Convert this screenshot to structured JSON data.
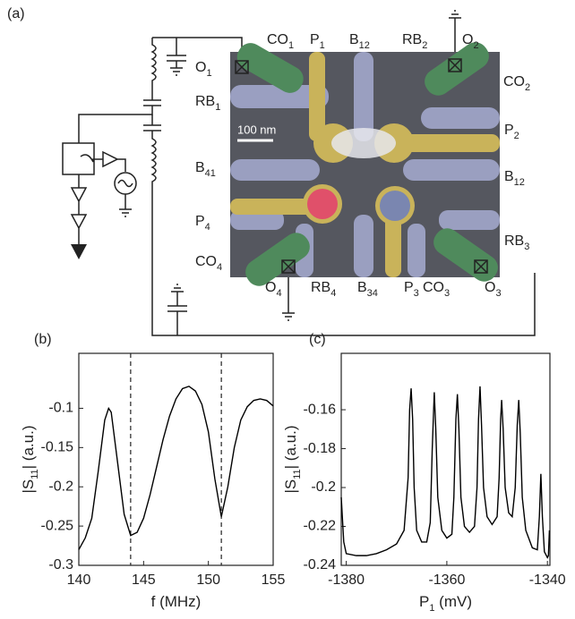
{
  "panel_a": {
    "panel_label": "(a)",
    "scale_bar": "100 nm",
    "gate_labels": [
      {
        "main": "CO",
        "sub": "1"
      },
      {
        "main": "P",
        "sub": "1"
      },
      {
        "main": "B",
        "sub": "12"
      },
      {
        "main": "RB",
        "sub": "2"
      },
      {
        "main": "O",
        "sub": "2"
      },
      {
        "main": "CO",
        "sub": "2"
      },
      {
        "main": "O",
        "sub": "1"
      },
      {
        "main": "RB",
        "sub": "1"
      },
      {
        "main": "P",
        "sub": "2"
      },
      {
        "main": "B",
        "sub": "41"
      },
      {
        "main": "B",
        "sub": "12"
      },
      {
        "main": "P",
        "sub": "4"
      },
      {
        "main": "RB",
        "sub": "3"
      },
      {
        "main": "CO",
        "sub": "4"
      },
      {
        "main": "O",
        "sub": "4"
      },
      {
        "main": "RB",
        "sub": "4"
      },
      {
        "main": "B",
        "sub": "34"
      },
      {
        "main": "P",
        "sub": "3"
      },
      {
        "main": "CO",
        "sub": "3"
      },
      {
        "main": "O",
        "sub": "3"
      }
    ]
  },
  "chart_data": [
    {
      "type": "line",
      "panel_label": "(b)",
      "xlabel": {
        "main": "f (MHz)"
      },
      "ylabel": {
        "main": "|S",
        "sub": "11",
        "tail": "| (a.u.)"
      },
      "color": "#000000",
      "x": [
        140,
        140.5,
        141,
        141.5,
        142,
        142.3,
        142.5,
        143,
        143.5,
        144,
        144.5,
        145,
        145.5,
        146,
        146.5,
        147,
        147.5,
        148,
        148.5,
        149,
        149.5,
        150,
        150.5,
        151,
        151.5,
        152,
        152.5,
        153,
        153.5,
        154,
        154.5,
        155
      ],
      "values": [
        -0.28,
        -0.265,
        -0.24,
        -0.18,
        -0.115,
        -0.1,
        -0.105,
        -0.17,
        -0.235,
        -0.262,
        -0.258,
        -0.24,
        -0.21,
        -0.175,
        -0.14,
        -0.11,
        -0.088,
        -0.075,
        -0.072,
        -0.078,
        -0.095,
        -0.13,
        -0.19,
        -0.238,
        -0.2,
        -0.15,
        -0.115,
        -0.098,
        -0.09,
        -0.088,
        -0.09,
        -0.097
      ],
      "vlines": [
        144,
        151
      ],
      "xlim": [
        140,
        155
      ],
      "xticks": [
        140,
        145,
        150,
        155
      ],
      "ylim": [
        -0.3,
        -0.03
      ],
      "yticks": [
        -0.3,
        -0.25,
        -0.2,
        -0.15,
        -0.1
      ]
    },
    {
      "type": "line",
      "panel_label": "(c)",
      "xlabel": {
        "main": "P",
        "sub": "1",
        "tail": " (mV)"
      },
      "ylabel": {
        "main": "|S",
        "sub": "11",
        "tail": "| (a.u.)"
      },
      "color": "#000000",
      "x": [
        -1381,
        -1380.5,
        -1380,
        -1378,
        -1376,
        -1374,
        -1372,
        -1370,
        -1368.5,
        -1367.7,
        -1367.4,
        -1367.1,
        -1366.8,
        -1366.5,
        -1366,
        -1365,
        -1364,
        -1363.3,
        -1362.9,
        -1362.5,
        -1362.2,
        -1361.8,
        -1361,
        -1360,
        -1359,
        -1358.6,
        -1358.2,
        -1357.9,
        -1357.6,
        -1357.2,
        -1356.5,
        -1355.5,
        -1354.5,
        -1354,
        -1353.7,
        -1353.4,
        -1353.1,
        -1352.7,
        -1352,
        -1351,
        -1350,
        -1349.6,
        -1349.3,
        -1349.1,
        -1348.8,
        -1348.4,
        -1347.7,
        -1347,
        -1346.4,
        -1346,
        -1345.7,
        -1345.4,
        -1345,
        -1344.3,
        -1343,
        -1342,
        -1341.6,
        -1341.3,
        -1341,
        -1340.6,
        -1340,
        -1339.8,
        -1339.6
      ],
      "values": [
        -0.205,
        -0.228,
        -0.234,
        -0.235,
        -0.235,
        -0.234,
        -0.232,
        -0.229,
        -0.222,
        -0.195,
        -0.16,
        -0.149,
        -0.165,
        -0.2,
        -0.222,
        -0.228,
        -0.228,
        -0.218,
        -0.18,
        -0.151,
        -0.17,
        -0.205,
        -0.222,
        -0.226,
        -0.224,
        -0.205,
        -0.165,
        -0.152,
        -0.17,
        -0.205,
        -0.22,
        -0.223,
        -0.22,
        -0.2,
        -0.165,
        -0.148,
        -0.168,
        -0.2,
        -0.215,
        -0.219,
        -0.215,
        -0.195,
        -0.165,
        -0.155,
        -0.17,
        -0.2,
        -0.213,
        -0.215,
        -0.2,
        -0.168,
        -0.155,
        -0.172,
        -0.205,
        -0.222,
        -0.231,
        -0.232,
        -0.215,
        -0.193,
        -0.215,
        -0.233,
        -0.236,
        -0.235,
        -0.222
      ],
      "xlim": [
        -1381,
        -1339.5
      ],
      "xticks": [
        -1380,
        -1360,
        -1340
      ],
      "ylim": [
        -0.24,
        -0.131
      ],
      "yticks": [
        -0.24,
        -0.22,
        -0.2,
        -0.18,
        -0.16
      ]
    }
  ]
}
